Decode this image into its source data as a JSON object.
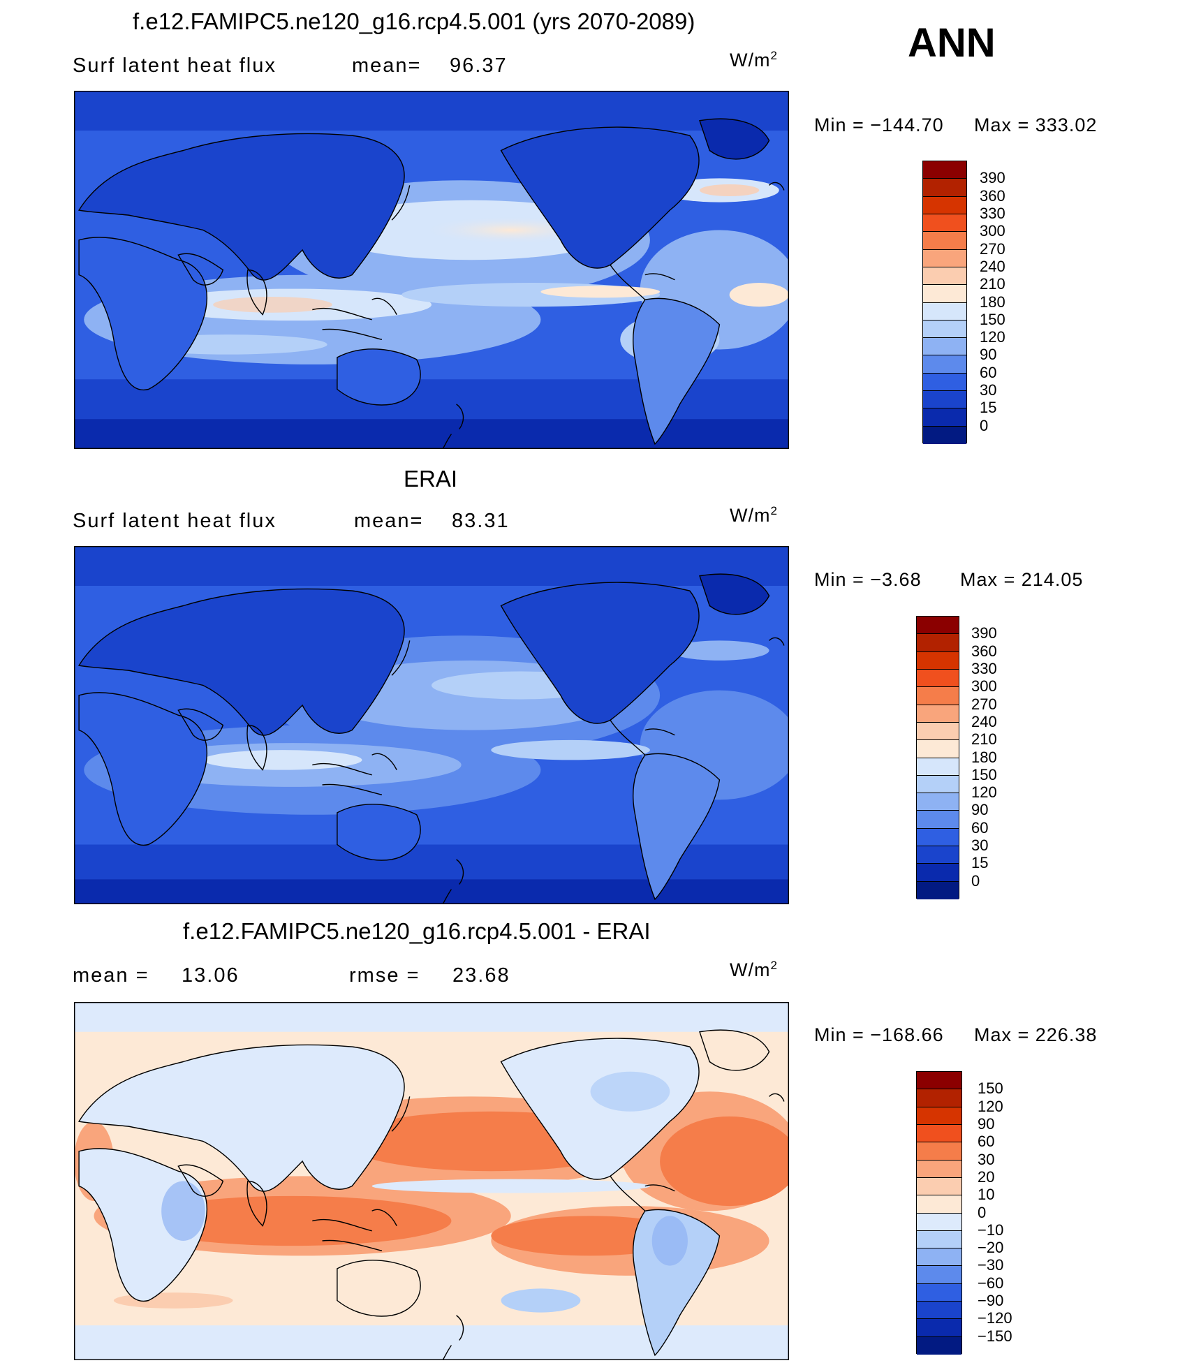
{
  "season": "ANN",
  "units": {
    "base": "W/m",
    "exp": "2"
  },
  "panels": [
    {
      "title": "f.e12.FAMIPC5.ne120_g16.rcp4.5.001 (yrs 2070-2089)",
      "left_label": "Surf latent heat flux",
      "stat_label": "mean=",
      "stat_value": "96.37",
      "min_text": "Min = −144.70",
      "max_text": "Max = 333.02",
      "min": -144.7,
      "max": 333.02,
      "levels": [
        "390",
        "360",
        "330",
        "300",
        "270",
        "240",
        "210",
        "180",
        "150",
        "120",
        "90",
        "60",
        "30",
        "15",
        "0"
      ]
    },
    {
      "title": "ERAI",
      "left_label": "Surf latent heat flux",
      "stat_label": "mean=",
      "stat_value": "83.31",
      "min_text": "Min =  −3.68",
      "max_text": "Max = 214.05",
      "min": -3.68,
      "max": 214.05,
      "levels": [
        "390",
        "360",
        "330",
        "300",
        "270",
        "240",
        "210",
        "180",
        "150",
        "120",
        "90",
        "60",
        "30",
        "15",
        "0"
      ]
    },
    {
      "title": "f.e12.FAMIPC5.ne120_g16.rcp4.5.001 - ERAI",
      "left_label": "mean =",
      "left_value": "13.06",
      "stat_label": "rmse =",
      "stat_value": "23.68",
      "min_text": "Min = −168.66",
      "max_text": "Max = 226.38",
      "min": -168.66,
      "max": 226.38,
      "levels": [
        "150",
        "120",
        "90",
        "60",
        "30",
        "20",
        "10",
        "0",
        "−10",
        "−20",
        "−30",
        "−60",
        "−90",
        "−120",
        "−150"
      ]
    }
  ],
  "colors": {
    "abs": [
      "#8b0000",
      "#b22200",
      "#d63400",
      "#f0501e",
      "#f57d4a",
      "#f9a57c",
      "#fbcdb0",
      "#fde9d6",
      "#d6e6fb",
      "#b4d0f8",
      "#8eb2f3",
      "#5d8aec",
      "#2f5fe2",
      "#1a44cc",
      "#0a2aad",
      "#021a82"
    ],
    "diff": [
      "#8b0000",
      "#b22200",
      "#d63400",
      "#f0501e",
      "#f57d4a",
      "#f9a57c",
      "#fbcdb0",
      "#fde9d6",
      "#ddeafc",
      "#b4d0f8",
      "#8eb2f3",
      "#5d8aec",
      "#2f5fe2",
      "#1a44cc",
      "#0a2aad",
      "#021a82"
    ]
  }
}
